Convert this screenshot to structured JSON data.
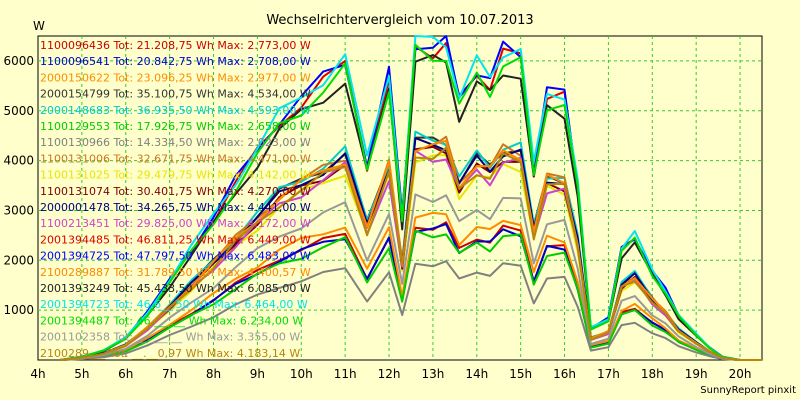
{
  "chart_data": {
    "type": "line",
    "title": "Wechselrichtervergleich vom 10.07.2013",
    "ylabel": "W",
    "footer": "SunnyReport pinxit",
    "grid": true,
    "ylim": [
      0,
      6500
    ],
    "xlim": [
      4,
      20.5
    ],
    "yticks": [
      {
        "value": 1000,
        "label": "1000"
      },
      {
        "value": 2000,
        "label": "2000"
      },
      {
        "value": 3000,
        "label": "3000"
      },
      {
        "value": 4000,
        "label": "4000"
      },
      {
        "value": 5000,
        "label": "5000"
      },
      {
        "value": 6000,
        "label": "6000"
      }
    ],
    "xticks": [
      {
        "value": 4,
        "label": "4h"
      },
      {
        "value": 5,
        "label": "5h"
      },
      {
        "value": 6,
        "label": "6h"
      },
      {
        "value": 7,
        "label": "7h"
      },
      {
        "value": 8,
        "label": "8h"
      },
      {
        "value": 9,
        "label": "9h"
      },
      {
        "value": 10,
        "label": "10h"
      },
      {
        "value": 11,
        "label": "11h"
      },
      {
        "value": 12,
        "label": "12h"
      },
      {
        "value": 13,
        "label": "13h"
      },
      {
        "value": 14,
        "label": "14h"
      },
      {
        "value": 15,
        "label": "15h"
      },
      {
        "value": 16,
        "label": "16h"
      },
      {
        "value": 17,
        "label": "17h"
      },
      {
        "value": 18,
        "label": "18h"
      },
      {
        "value": 19,
        "label": "19h"
      },
      {
        "value": 20,
        "label": "20h"
      }
    ],
    "legend_position": "top-left",
    "series": [
      {
        "name": "1100096436 Tot: 21.208,75 Wh Max: 2.773,00 W",
        "color": "#cc0000",
        "profile": 2700
      },
      {
        "name": "1100096541 Tot: 20.842,75 Wh Max: 2.708,00 W",
        "color": "#0000cc",
        "profile": 2650
      },
      {
        "name": "2000150622 Tot: 23.096,25 Wh Max: 2.977,00 W",
        "color": "#ff8c00",
        "profile": 2900
      },
      {
        "name": "2000154799 Tot: 35.100,75 Wh Max: 4.534,00 W",
        "color": "#333333",
        "profile": 4400
      },
      {
        "name": "2000148683 Tot: 36.935,50 Wh Max: 4.593,00 W",
        "color": "#00cccc",
        "profile": 4450
      },
      {
        "name": "1100129553 Tot: 17.926,75 Wh Max: 2.658,00 W",
        "color": "#00cc00",
        "profile": 2550
      },
      {
        "name": "1100130966 Tot: 14.334,50 Wh Max: 2.023,00 W",
        "color": "#808080",
        "profile": 1950
      },
      {
        "name": "1100131006 Tot: 32.671,75 Wh Max: 4.471,00 W",
        "color": "#cc7722",
        "profile": 4350
      },
      {
        "name": "1100131025 Tot: 29.479,75 Wh Max: 4.142,00 W",
        "color": "#e6e600",
        "profile": 4050
      },
      {
        "name": "1100131074 Tot: 30.401,75 Wh Max: 4.270,00 W",
        "color": "#800000",
        "profile": 4200
      },
      {
        "name": "2000001478 Tot: 34.265,75 Wh Max: 4.441,00 W",
        "color": "#000080",
        "profile": 4330
      },
      {
        "name": "1100213451 Tot: 29.825,00 Wh Max: 4.172,00 W",
        "color": "#cc44cc",
        "profile": 4100
      },
      {
        "name": "2001394485 Tot: 46.811,25 Wh Max: 6.449,00 W",
        "color": "#dd0000",
        "profile": 6300
      },
      {
        "name": "2001394725 Tot: 47.797,50 Wh Max: 6.483,00 W",
        "color": "#0000ff",
        "profile": 6400
      },
      {
        "name": "2100289887 Tot: 31.789,50 Wh Max: 4.400,57 W",
        "color": "#ff8800",
        "profile": 4300
      },
      {
        "name": "2001393249 Tot: 45.433,50 Wh Max: 6.085,00 W",
        "color": "#222222",
        "profile": 6000
      },
      {
        "name": "2001394723 Tot: 46.6__,50 Wh Max: 6.464,00 W",
        "color": "#00e5ee",
        "profile": 6450
      },
      {
        "name": "2001394487 Tot: 46.___,__ Wh Max: 6.234,00 W",
        "color": "#00dd00",
        "profile": 6150
      },
      {
        "name": "2001102358 Tot: __.___,__ Wh Max: 3.355,00 W",
        "color": "#999999",
        "profile": 3300
      },
      {
        "name": "2100289___ Tot: __.__0,97 Wh Max: 4.183,14 W",
        "color": "#b8860b",
        "profile": 4150
      }
    ],
    "shape": {
      "x": [
        4.5,
        5,
        5.5,
        6,
        6.5,
        7,
        7.5,
        8,
        8.5,
        9,
        9.5,
        10,
        10.5,
        11,
        11.5,
        12,
        12.3,
        12.6,
        13,
        13.3,
        13.6,
        14,
        14.3,
        14.6,
        15,
        15.3,
        15.6,
        16,
        16.3,
        16.6,
        17,
        17.3,
        17.6,
        18,
        18.3,
        18.6,
        19,
        19.3,
        19.6,
        20,
        20.5
      ],
      "y": [
        0,
        0.01,
        0.03,
        0.07,
        0.15,
        0.25,
        0.35,
        0.45,
        0.56,
        0.66,
        0.76,
        0.82,
        0.88,
        0.94,
        0.62,
        0.9,
        0.45,
        1.0,
        0.99,
        1.0,
        0.82,
        0.92,
        0.88,
        0.97,
        0.96,
        0.6,
        0.84,
        0.83,
        0.55,
        0.1,
        0.13,
        0.35,
        0.39,
        0.28,
        0.22,
        0.14,
        0.08,
        0.04,
        0.01,
        0,
        0
      ]
    }
  }
}
